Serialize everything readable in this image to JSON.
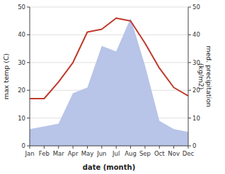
{
  "chart_data": {
    "type": "line",
    "categories": [
      "Jan",
      "Feb",
      "Mar",
      "Apr",
      "May",
      "Jun",
      "Jul",
      "Aug",
      "Sep",
      "Oct",
      "Nov",
      "Dec"
    ],
    "series": [
      {
        "type": "area",
        "axis": "y2",
        "color": "#b8c4e8",
        "values": [
          6,
          7,
          8,
          19,
          21,
          36,
          34,
          46,
          29,
          9,
          6,
          5
        ]
      },
      {
        "type": "line",
        "color": "#c0392b",
        "values": [
          17,
          17,
          23,
          30,
          41,
          42,
          46,
          45,
          37,
          28,
          21,
          18
        ]
      }
    ],
    "xlabel": "date (month)",
    "ylabel": "max temp (C)",
    "y2label": "med. precipitation\n(kg/m2)",
    "ylim": [
      0,
      50
    ],
    "yticks": [
      0,
      10,
      20,
      30,
      40,
      50
    ],
    "y2lim": [
      0,
      50
    ],
    "y2ticks": [
      0,
      10,
      20,
      30,
      40,
      50
    ],
    "grid": true
  }
}
